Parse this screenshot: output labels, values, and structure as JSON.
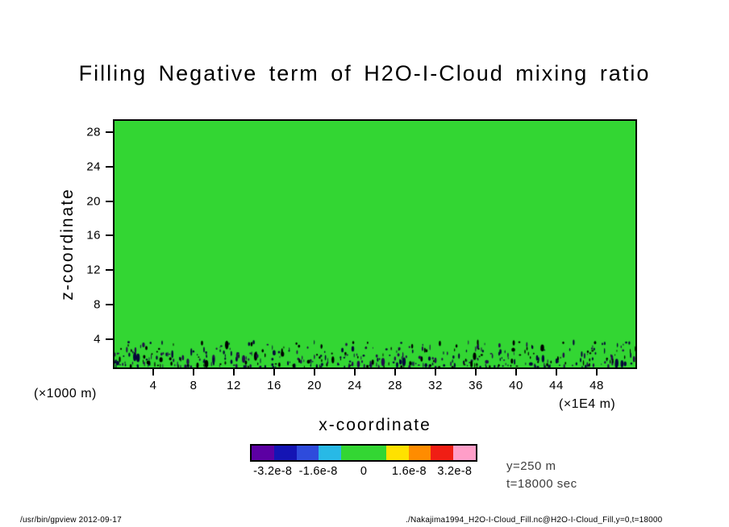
{
  "chart_data": {
    "type": "heatmap",
    "title": "Filling Negative term of H2O-I-Cloud mixing ratio",
    "xlabel": "x-coordinate",
    "ylabel": "z-coordinate",
    "x_axis_unit": "(×1E4 m)",
    "y_axis_unit": "(×1000 m)",
    "x_ticks": [
      4,
      8,
      12,
      16,
      20,
      24,
      28,
      32,
      36,
      40,
      44,
      48
    ],
    "y_ticks": [
      4,
      8,
      12,
      16,
      20,
      24,
      28
    ],
    "xlim": [
      0,
      52
    ],
    "ylim": [
      0.5,
      29.5
    ],
    "grid": false,
    "background_value": 0,
    "background_color": "#33d633",
    "field_description": "Uniform zero-valued (green) field everywhere except scattered small negative-value cells (dark navy/black speckles) in a band near the surface, z about 0.5-3.5 (x1000 m), across all x.",
    "speckle_band": {
      "z_min": 0.55,
      "z_max": 3.5,
      "count": 430,
      "colors": [
        "#07073a",
        "#000000",
        "#23104a"
      ]
    },
    "colorbar": {
      "cell_colors": [
        "#5c00a3",
        "#1414b4",
        "#2e4bdc",
        "#28b9e6",
        "#33d633",
        "#33d633",
        "#ffe100",
        "#ff8c00",
        "#f01e14",
        "#ff9ec8"
      ],
      "tick_labels": [
        "-3.2e-8",
        "-1.6e-8",
        "0",
        "1.6e-8",
        "3.2e-8"
      ],
      "tick_positions": [
        0.1,
        0.3,
        0.5,
        0.7,
        0.9
      ],
      "legend_position": "bottom-center"
    }
  },
  "annotations": {
    "y_level": "y=250 m",
    "time": "t=18000 sec"
  },
  "footer": {
    "left": "/usr/bin/gpview   2012-09-17",
    "right": "./Nakajima1994_H2O-I-Cloud_Fill.nc@H2O-I-Cloud_Fill,y=0,t=18000"
  }
}
